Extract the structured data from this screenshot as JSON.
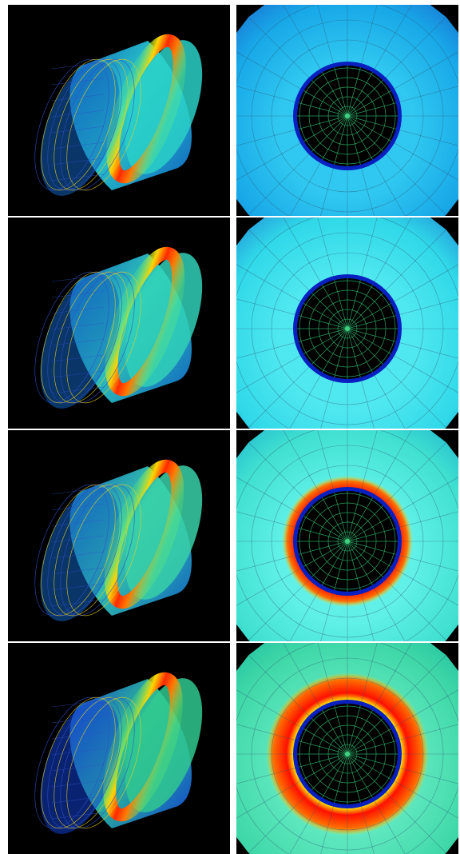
{
  "figure": {
    "background": "#ffffff",
    "panel_background": "#000000",
    "rows": [
      {
        "cylinder": {
          "ring_position": 0.85,
          "ring_colors": [
            "#ff2a00",
            "#ff7a00",
            "#ffd400",
            "#7dff5a"
          ],
          "body_color": "#2ad0c8",
          "body_dark": "#1060c0",
          "mesh_color": "#3050c8",
          "yellow_mesh": "#e8d020"
        },
        "top_view": {
          "outer_colors": [
            "#18a8e8",
            "#30c8f0",
            "#1870d0"
          ],
          "ring_inner": 0.62,
          "ring_outer": 0.78,
          "ring_colors": [
            "#ff1800",
            "#ff8000",
            "#ffe000"
          ],
          "hole_color": "#000000",
          "grid_color": "#2aa060",
          "blue_band": "#0820c0"
        }
      },
      {
        "cylinder": {
          "ring_position": 0.83,
          "ring_colors": [
            "#ff2a00",
            "#ff7a00",
            "#ffd400",
            "#7dff5a"
          ],
          "body_color": "#30d0b8",
          "body_dark": "#1060c0",
          "mesh_color": "#3050c8",
          "yellow_mesh": "#e8d020"
        },
        "top_view": {
          "outer_colors": [
            "#30d8e8",
            "#50e8f0",
            "#2090d8"
          ],
          "ring_inner": 0.58,
          "ring_outer": 0.76,
          "ring_colors": [
            "#ff1800",
            "#ff8000",
            "#ffe000"
          ],
          "hole_color": "#000000",
          "grid_color": "#2aa060",
          "blue_band": "#0820c0"
        }
      },
      {
        "cylinder": {
          "ring_position": 0.82,
          "ring_colors": [
            "#ff2a00",
            "#ff7a00",
            "#ffd400",
            "#7dff5a"
          ],
          "body_color": "#38d0a8",
          "body_dark": "#1060c0",
          "mesh_color": "#3050c8",
          "yellow_mesh": "#e8d020"
        },
        "top_view": {
          "outer_colors": [
            "#40e0d0",
            "#60f0e8",
            "#20b8d0"
          ],
          "ring_inner": 0.62,
          "ring_outer": 0.86,
          "ring_colors": [
            "#ff1000",
            "#ff7000",
            "#ffe000"
          ],
          "hole_color": "#000000",
          "grid_color": "#2aa060",
          "blue_band": "#0820c0"
        }
      },
      {
        "cylinder": {
          "ring_position": 0.8,
          "ring_colors": [
            "#ff2a00",
            "#ff7a00",
            "#ffd400",
            "#7dff5a"
          ],
          "body_color": "#30c890",
          "body_dark": "#1040d0",
          "mesh_color": "#3050c8",
          "yellow_mesh": "#e8d020"
        },
        "top_view": {
          "outer_colors": [
            "#40d8a8",
            "#60e8c0",
            "#20c0a0"
          ],
          "ring_inner": 0.62,
          "ring_outer": 0.96,
          "ring_colors": [
            "#ff1000",
            "#ff7000",
            "#ffe000"
          ],
          "hole_color": "#000000",
          "grid_color": "#2aa060",
          "blue_band": "#0820c0"
        }
      }
    ]
  }
}
